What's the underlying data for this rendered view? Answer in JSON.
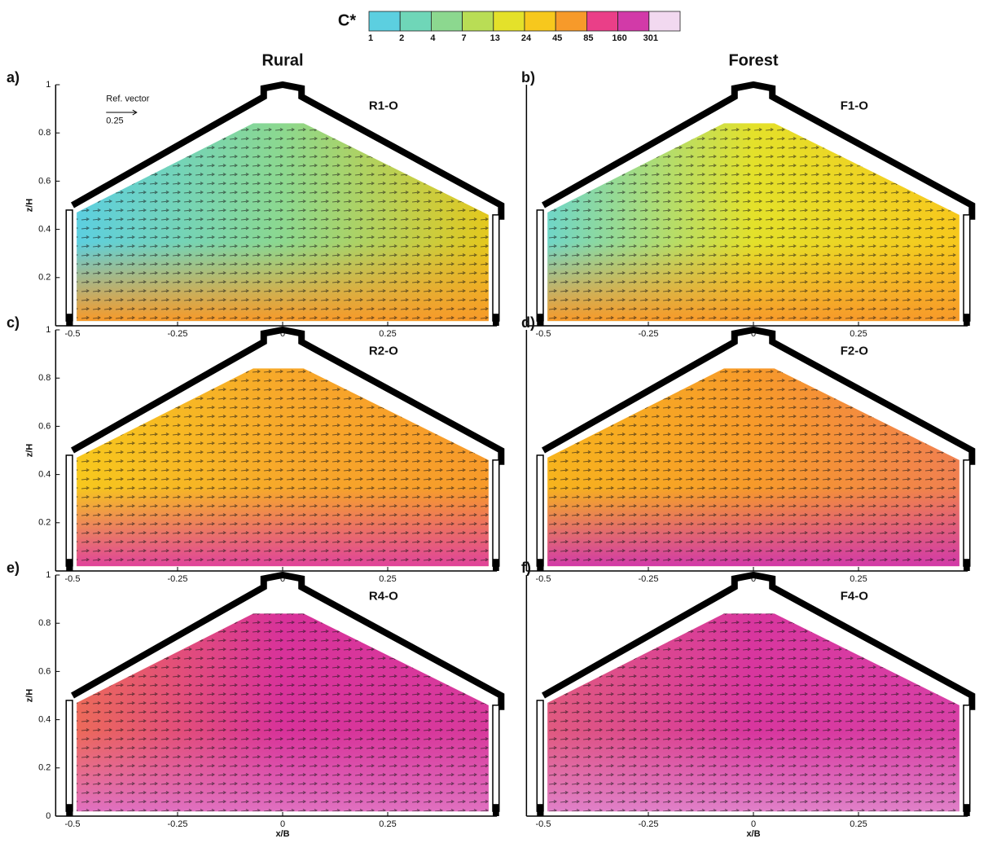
{
  "column_titles": [
    "Rural",
    "Forest"
  ],
  "chart_data": [
    {
      "type": "colorbar",
      "label": "C*",
      "ticks": [
        1,
        2,
        4,
        7,
        13,
        24,
        45,
        85,
        160,
        301
      ],
      "colors": [
        "#5ccfe0",
        "#6fd6b8",
        "#8cd88f",
        "#b9dd55",
        "#e4e12a",
        "#f7c81d",
        "#f79a2a",
        "#ea3f88",
        "#d23aa8",
        "#f2d9f0"
      ]
    },
    {
      "type": "contour",
      "letter": "a)",
      "title": "R1-O",
      "xlim": [
        -0.54,
        0.51
      ],
      "ylim": [
        0,
        1
      ],
      "xticks": [
        -0.5,
        -0.25,
        0,
        0.25
      ],
      "yticks": [
        0.2,
        0.4,
        0.6,
        0.8,
        1
      ],
      "ylabel": "z/H",
      "ref_vector": {
        "label": "Ref. vector",
        "value": 0.25
      },
      "colors": [
        "#5ccfe0",
        "#8cd88f",
        "#e4c81d"
      ],
      "floor_color": "#f79a2a"
    },
    {
      "type": "contour",
      "letter": "b)",
      "title": "F1-O",
      "xlim": [
        -0.54,
        0.51
      ],
      "ylim": [
        0,
        1
      ],
      "xticks": [
        -0.5,
        -0.25,
        0,
        0.25
      ],
      "colors": [
        "#6fd6c8",
        "#e4e12a",
        "#f7c81d"
      ],
      "floor_color": "#f79a2a"
    },
    {
      "type": "contour",
      "letter": "c)",
      "title": "R2-O",
      "xlim": [
        -0.54,
        0.51
      ],
      "ylim": [
        0,
        1
      ],
      "xticks": [
        -0.5,
        -0.25,
        0,
        0.25
      ],
      "yticks": [
        0.2,
        0.4,
        0.6,
        0.8,
        1
      ],
      "ylabel": "z/H",
      "colors": [
        "#f7c81d",
        "#f7a82a",
        "#f79a2a"
      ],
      "floor_color": "#e0449a"
    },
    {
      "type": "contour",
      "letter": "d)",
      "title": "F2-O",
      "xlim": [
        -0.54,
        0.51
      ],
      "ylim": [
        0,
        1
      ],
      "xticks": [
        -0.5,
        -0.25,
        0,
        0.25
      ],
      "colors": [
        "#f7b41d",
        "#f79a2a",
        "#f08050"
      ],
      "floor_color": "#d23aa8"
    },
    {
      "type": "contour",
      "letter": "e)",
      "title": "R4-O",
      "xlim": [
        -0.54,
        0.51
      ],
      "ylim": [
        0,
        1
      ],
      "xticks": [
        -0.5,
        -0.25,
        0,
        0.25
      ],
      "yticks": [
        0,
        0.2,
        0.4,
        0.6,
        0.8,
        1
      ],
      "ylabel": "z/H",
      "xlabel": "x/B",
      "colors": [
        "#ec6a5a",
        "#d8329a",
        "#d83a9c"
      ],
      "floor_color": "#e070c0"
    },
    {
      "type": "contour",
      "letter": "f)",
      "title": "F4-O",
      "xlim": [
        -0.54,
        0.51
      ],
      "ylim": [
        0,
        1
      ],
      "xticks": [
        -0.5,
        -0.25,
        0,
        0.25
      ],
      "xlabel": "x/B",
      "colors": [
        "#e05a80",
        "#d8369e",
        "#d840a6"
      ],
      "floor_color": "#e080c8"
    }
  ]
}
